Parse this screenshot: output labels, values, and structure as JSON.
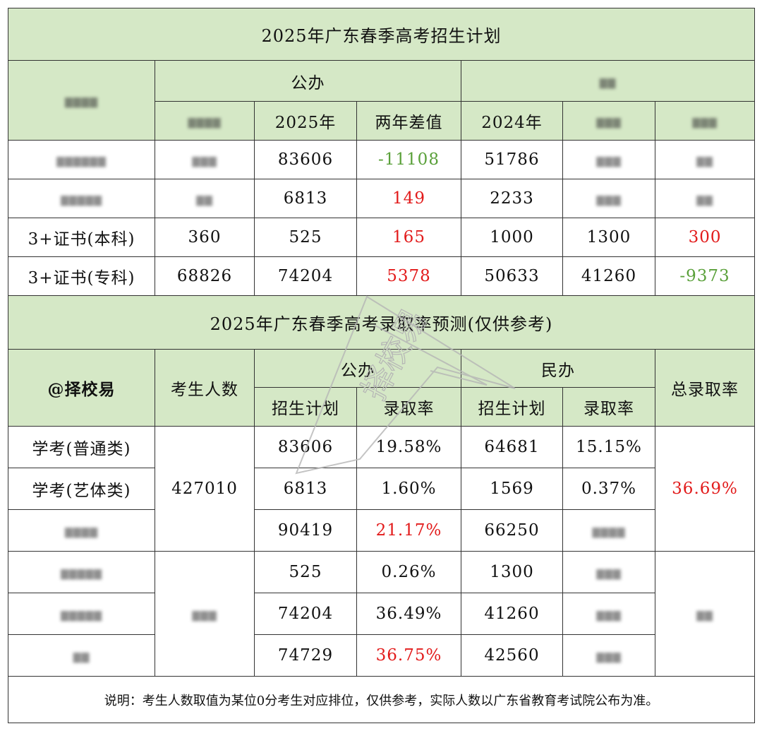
{
  "table1": {
    "title": "2025年广东春季高考招生计划",
    "group_public": "公办",
    "col_2025": "2025年",
    "col_diff": "两年差值",
    "col_2024": "2024年",
    "rows": [
      {
        "c2": "83606",
        "c3": "-11108",
        "c4": "51786"
      },
      {
        "c2": "6813",
        "c3": "149",
        "c4": "2233"
      },
      {
        "label": "3+证书(本科)",
        "c1": "360",
        "c2": "525",
        "c3": "165",
        "c4": "1000",
        "c5": "1300",
        "c6": "300"
      },
      {
        "label": "3+证书(专科)",
        "c1": "68826",
        "c2": "74204",
        "c3": "5378",
        "c4": "50633",
        "c5": "41260",
        "c6": "-9373"
      }
    ]
  },
  "table2": {
    "title": "2025年广东春季高考录取率预测(仅供参考)",
    "corner": "@择校易",
    "col_candidates": "考生人数",
    "group_public": "公办",
    "group_private": "民办",
    "col_total_rate": "总录取率",
    "sub_plan": "招生计划",
    "sub_rate": "录取率",
    "candidates_value": "427010",
    "total_rate_value": "36.69%",
    "rows": [
      {
        "label": "学考(普通类)",
        "pub_plan": "83606",
        "pub_rate": "19.58%",
        "pri_plan": "64681",
        "pri_rate": "15.15%"
      },
      {
        "label": "学考(艺体类)",
        "pub_plan": "6813",
        "pub_rate": "1.60%",
        "pri_plan": "1569",
        "pri_rate": "0.37%"
      },
      {
        "pub_plan": "90419",
        "pub_rate": "21.17%",
        "pri_plan": "66250"
      },
      {
        "pub_plan": "525",
        "pub_rate": "0.26%",
        "pri_plan": "1300"
      },
      {
        "pub_plan": "74204",
        "pub_rate": "36.49%",
        "pri_plan": "41260"
      },
      {
        "pub_plan": "74729",
        "pub_rate": "36.75%",
        "pri_plan": "42560"
      }
    ]
  },
  "note": "说明：考生人数取值为某位0分考生对应排位，仅供参考，实际人数以广东省教育考试院公布为准。",
  "watermark": "择校易",
  "colors": {
    "header_green": "#d5e8c6",
    "red": "#e21b1b",
    "green_text": "#5aa03a"
  }
}
